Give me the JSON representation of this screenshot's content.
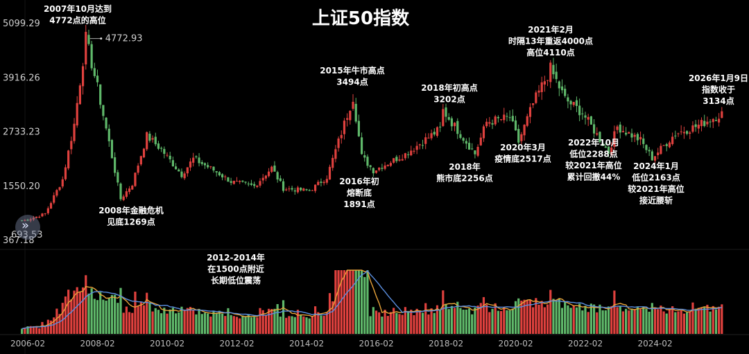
{
  "chart_data": {
    "type": "candlestick",
    "title": "上证50指数",
    "y_ticks": [
      "5099.29",
      "3916.26",
      "2733.23",
      "1550.20",
      "367.18"
    ],
    "ylim": [
      367.18,
      5099.29
    ],
    "y_max_marker": "4772.93",
    "y_min_marker": "693.53",
    "x_ticks": [
      "2006-02",
      "2008-02",
      "2010-02",
      "2012-02",
      "2014-02",
      "2016-02",
      "2018-02",
      "2020-02",
      "2022-02",
      "2024-02"
    ],
    "up_color": "#e0413e",
    "down_color": "#5fb86a",
    "ma_colors": [
      "#e8a33a",
      "#5b8fe0"
    ],
    "price_path": [
      {
        "date": "2005-12",
        "close": 800
      },
      {
        "date": "2006-02",
        "close": 820
      },
      {
        "date": "2006-08",
        "close": 950
      },
      {
        "date": "2007-02",
        "close": 1700
      },
      {
        "date": "2007-06",
        "close": 2900
      },
      {
        "date": "2007-10",
        "close": 4772
      },
      {
        "date": "2008-02",
        "close": 3700
      },
      {
        "date": "2008-06",
        "close": 2500
      },
      {
        "date": "2008-10",
        "close": 1269
      },
      {
        "date": "2009-02",
        "close": 1600
      },
      {
        "date": "2009-07",
        "close": 2650
      },
      {
        "date": "2009-12",
        "close": 2350
      },
      {
        "date": "2010-07",
        "close": 1800
      },
      {
        "date": "2010-11",
        "close": 2150
      },
      {
        "date": "2011-06",
        "close": 1900
      },
      {
        "date": "2011-12",
        "close": 1650
      },
      {
        "date": "2012-08",
        "close": 1550
      },
      {
        "date": "2013-02",
        "close": 1950
      },
      {
        "date": "2013-06",
        "close": 1500
      },
      {
        "date": "2014-03",
        "close": 1450
      },
      {
        "date": "2014-09",
        "close": 1750
      },
      {
        "date": "2015-06",
        "close": 3494
      },
      {
        "date": "2015-09",
        "close": 2200
      },
      {
        "date": "2016-01",
        "close": 1891
      },
      {
        "date": "2016-12",
        "close": 2250
      },
      {
        "date": "2017-12",
        "close": 2800
      },
      {
        "date": "2018-01",
        "close": 3202
      },
      {
        "date": "2018-12",
        "close": 2256
      },
      {
        "date": "2019-04",
        "close": 2950
      },
      {
        "date": "2019-12",
        "close": 3050
      },
      {
        "date": "2020-03",
        "close": 2517
      },
      {
        "date": "2020-08",
        "close": 3350
      },
      {
        "date": "2021-02",
        "close": 4110
      },
      {
        "date": "2021-07",
        "close": 3450
      },
      {
        "date": "2022-01",
        "close": 3150
      },
      {
        "date": "2022-10",
        "close": 2288
      },
      {
        "date": "2023-01",
        "close": 2850
      },
      {
        "date": "2023-09",
        "close": 2550
      },
      {
        "date": "2024-01",
        "close": 2163
      },
      {
        "date": "2024-09",
        "close": 2700
      },
      {
        "date": "2025-04",
        "close": 2850
      },
      {
        "date": "2026-01",
        "close": 3134
      }
    ],
    "annotations": [
      {
        "lines": [
          "2007年10月达到",
          "4772点的高位"
        ]
      },
      {
        "lines": [
          "2008年金融危机",
          "见底1269点"
        ]
      },
      {
        "lines": [
          "2012-2014年",
          "在1500点附近",
          "长期低位震荡"
        ]
      },
      {
        "lines": [
          "2015年牛市高点",
          "3494点"
        ]
      },
      {
        "lines": [
          "2016年初",
          "熔断底",
          "1891点"
        ]
      },
      {
        "lines": [
          "2018年初高点",
          "3202点"
        ]
      },
      {
        "lines": [
          "2018年",
          "熊市底2256点"
        ]
      },
      {
        "lines": [
          "2020年3月",
          "疫情底2517点"
        ]
      },
      {
        "lines": [
          "2021年2月",
          "时隔13年重返4000点",
          "高位4110点"
        ]
      },
      {
        "lines": [
          "2022年10月",
          "低位2288点",
          "较2021年高位",
          "累计回撤44%"
        ]
      },
      {
        "lines": [
          "2024年1月",
          "低位2163点",
          "较2021年高位",
          "接近腰斩"
        ]
      },
      {
        "lines": [
          "2026年1月9日",
          "指数收于",
          "3134点"
        ]
      }
    ]
  },
  "controls": {
    "scroll_icon": "double-chevron-right-icon",
    "scroll_glyph": "»"
  }
}
